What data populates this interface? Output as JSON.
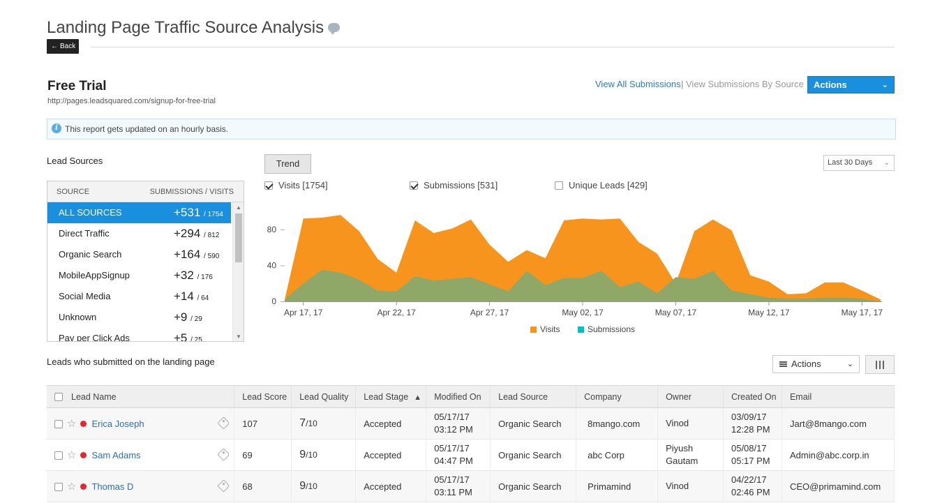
{
  "header": {
    "title": "Landing Page Traffic Source Analysis",
    "comment_icon": "comment-icon",
    "back_label": "Back"
  },
  "landing_page": {
    "name": "Free Trial",
    "url": "http://pages.leadsquared.com/signup-for-free-trial"
  },
  "links": {
    "view_all": "View All Submissions",
    "separator": "|",
    "view_by_source": "View Submissions By Source"
  },
  "actions_top_label": "Actions",
  "info": {
    "icon": "info-icon",
    "text": "This report gets updated on an hourly basis."
  },
  "lead_sources": {
    "title": "Lead Sources",
    "col_source": "SOURCE",
    "col_sub_visits": "SUBMISSIONS / VISITS",
    "rows": [
      {
        "name": "ALL SOURCES",
        "submissions": "+531",
        "visits": "/ 1754"
      },
      {
        "name": "Direct Traffic",
        "submissions": "+294",
        "visits": "/ 812"
      },
      {
        "name": "Organic Search",
        "submissions": "+164",
        "visits": "/ 590"
      },
      {
        "name": "MobileAppSignup",
        "submissions": "+32",
        "visits": "/ 176"
      },
      {
        "name": "Social Media",
        "submissions": "+14",
        "visits": "/ 64"
      },
      {
        "name": "Unknown",
        "submissions": "+9",
        "visits": "/ 29"
      },
      {
        "name": "Pay per Click Ads",
        "submissions": "+5",
        "visits": "/ 25"
      }
    ]
  },
  "chart_controls": {
    "trend_label": "Trend",
    "range_label": "Last 30 Days",
    "toggles": [
      {
        "label": "Visits [1754]",
        "checked": true
      },
      {
        "label": "Submissions [531]",
        "checked": true
      },
      {
        "label": "Unique Leads [429]",
        "checked": false
      }
    ]
  },
  "chart_data": {
    "type": "area",
    "x": [
      "Apr 16",
      "Apr 17",
      "Apr 18",
      "Apr 19",
      "Apr 20",
      "Apr 21",
      "Apr 22",
      "Apr 23",
      "Apr 24",
      "Apr 25",
      "Apr 26",
      "Apr 27",
      "Apr 28",
      "Apr 29",
      "Apr 30",
      "May 01",
      "May 02",
      "May 03",
      "May 04",
      "May 05",
      "May 06",
      "May 07",
      "May 08",
      "May 09",
      "May 10",
      "May 11",
      "May 12",
      "May 13",
      "May 14",
      "May 15",
      "May 16",
      "May 17",
      "May 18"
    ],
    "x_tick_labels": [
      "Apr 17, 17",
      "Apr 22, 17",
      "Apr 27, 17",
      "May 02, 17",
      "May 07, 17",
      "May 12, 17",
      "May 17, 17"
    ],
    "x_tick_indices": [
      1,
      6,
      11,
      16,
      21,
      26,
      31
    ],
    "y_ticks": [
      0,
      40,
      80
    ],
    "ylim": [
      0,
      100
    ],
    "series": [
      {
        "name": "Visits",
        "color": "#f7941d",
        "values": [
          2,
          92,
          93,
          96,
          78,
          47,
          32,
          90,
          76,
          81,
          91,
          63,
          44,
          57,
          48,
          90,
          92,
          91,
          92,
          66,
          53,
          20,
          78,
          91,
          79,
          29,
          22,
          8,
          9,
          21,
          21,
          12,
          2
        ]
      },
      {
        "name": "Submissions",
        "color": "#00bfc5",
        "values": [
          2,
          20,
          35,
          32,
          24,
          12,
          11,
          28,
          23,
          25,
          27,
          19,
          11,
          34,
          18,
          26,
          26,
          34,
          16,
          22,
          9,
          27,
          25,
          34,
          12,
          8,
          4,
          3,
          3,
          4,
          4,
          3,
          0
        ]
      }
    ],
    "legend": [
      {
        "label": "Visits",
        "color": "#f7941d"
      },
      {
        "label": "Submissions",
        "color": "#00bfc5"
      }
    ],
    "legend_position": "bottom"
  },
  "leads": {
    "title": "Leads who submitted on the landing page",
    "actions_label": "Actions",
    "columns_icon": "columns-icon",
    "headers": [
      "Lead Name",
      "Lead Score",
      "Lead Quality",
      "Lead Stage",
      "Modified On",
      "Lead Source",
      "Company",
      "Owner",
      "Created On",
      "Email"
    ],
    "rows": [
      {
        "name": "Erica Joseph",
        "score": "107",
        "quality": "7",
        "quality_of": "/10",
        "stage": "Accepted",
        "modified_date": "05/17/17",
        "modified_time": "03:12 PM",
        "source": "Organic Search",
        "company": "8mango.com",
        "owner1": "Vinod",
        "owner2": "",
        "created_date": "03/09/17",
        "created_time": "12:28 PM",
        "email": "Jart@8mango.com"
      },
      {
        "name": "Sam Adams",
        "score": "69",
        "quality": "9",
        "quality_of": "/10",
        "stage": "Accepted",
        "modified_date": "05/17/17",
        "modified_time": "04:47 PM",
        "source": "Organic Search",
        "company": "abc Corp",
        "owner1": "Piyush",
        "owner2": "Gautam",
        "created_date": "05/08/17",
        "created_time": "05:17 PM",
        "email": "Admin@abc.corp.in"
      },
      {
        "name": "Thomas D",
        "score": "68",
        "quality": "9",
        "quality_of": "/10",
        "stage": "Accepted",
        "modified_date": "05/17/17",
        "modified_time": "03:11 PM",
        "source": "Organic Search",
        "company": "Primamind",
        "owner1": "Vinod",
        "owner2": "",
        "created_date": "04/22/17",
        "created_time": "02:46 PM",
        "email": "CEO@primamind.com"
      }
    ]
  }
}
